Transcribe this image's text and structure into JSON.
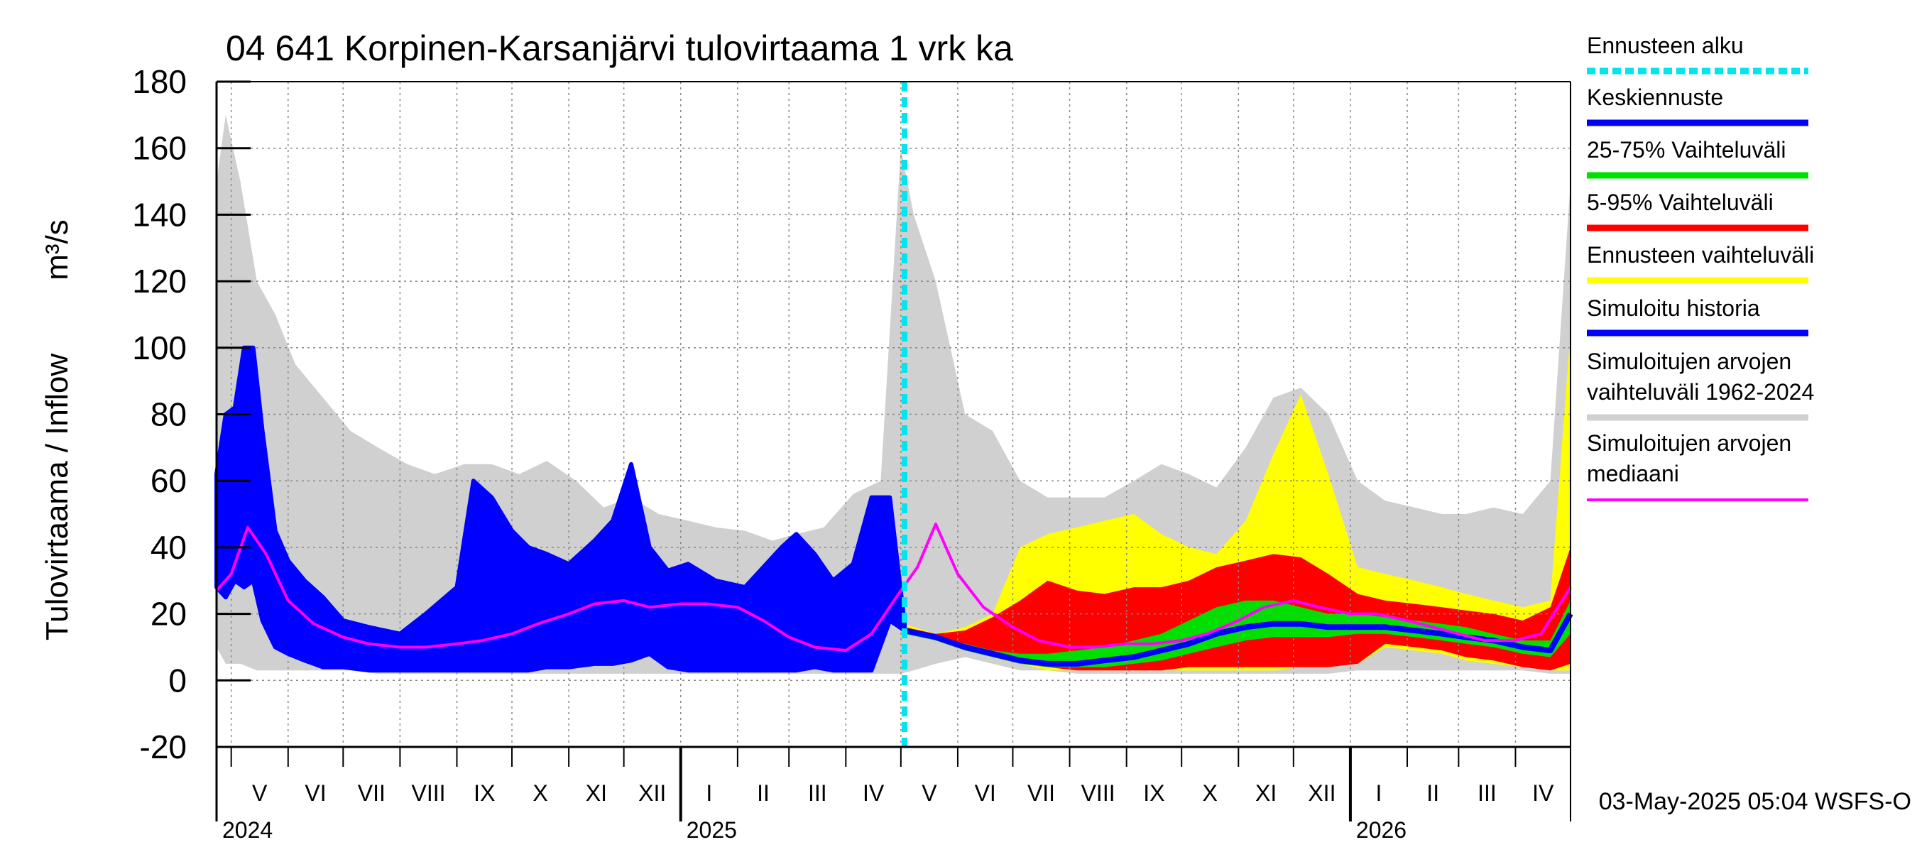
{
  "chart_data": {
    "type": "area",
    "title": "04 641 Korpinen-Karsanjärvi tulovirtaama 1 vrk ka",
    "ylabel": "Tulovirtaama / Inflow",
    "yunit": "m³/s",
    "ylim": [
      -20,
      180
    ],
    "yticks": [
      "-20",
      "0",
      "20",
      "40",
      "60",
      "80",
      "100",
      "120",
      "140",
      "160",
      "180"
    ],
    "xlim": [
      "2024-04-23",
      "2026-05-01"
    ],
    "months": [
      "V",
      "VI",
      "VII",
      "VIII",
      "IX",
      "X",
      "XI",
      "XII",
      "I",
      "II",
      "III",
      "IV",
      "V",
      "VI",
      "VII",
      "VIII",
      "IX",
      "X",
      "XI",
      "XII",
      "I",
      "II",
      "III",
      "IV"
    ],
    "years": [
      "2024",
      "2025",
      "2026"
    ],
    "grid": true,
    "legend_position": "right",
    "forecast_start": "2025-05-03",
    "footer": "03-May-2025 05:04 WSFS-O",
    "legend": [
      {
        "label": "Ennusteen alku",
        "color": "#00e5ee",
        "style": "dashed"
      },
      {
        "label": "Keskiennuste",
        "color": "#0000ff",
        "style": "solid"
      },
      {
        "label": "25-75% Vaihteluväli",
        "color": "#00e000",
        "style": "solid"
      },
      {
        "label": "5-95% Vaihteluväli",
        "color": "#ff0000",
        "style": "solid"
      },
      {
        "label": "Ennusteen vaihteluväli",
        "color": "#ffff00",
        "style": "solid"
      },
      {
        "label": "Simuloitu historia",
        "color": "#0000ff",
        "style": "solid"
      },
      {
        "label": "Simuloitujen arvojen\nvaihteluväli 1962-2024",
        "color": "#d0d0d0",
        "style": "solid"
      },
      {
        "label": "Simuloitujen arvojen\nmediaani",
        "color": "#ff00ff",
        "style": "solid"
      }
    ],
    "series": [
      {
        "name": "Simuloitujen arvojen vaihteluväli 1962-2024",
        "kind": "band",
        "color": "#d0d0d0",
        "x": [
          "2024-04-23",
          "2024-04-28",
          "2024-05-06",
          "2024-05-15",
          "2024-05-25",
          "2024-06-05",
          "2024-06-20",
          "2024-07-05",
          "2024-07-20",
          "2024-08-05",
          "2024-08-20",
          "2024-09-05",
          "2024-09-20",
          "2024-10-05",
          "2024-10-20",
          "2024-11-05",
          "2024-11-20",
          "2024-12-05",
          "2024-12-20",
          "2025-01-05",
          "2025-01-20",
          "2025-02-05",
          "2025-02-20",
          "2025-03-05",
          "2025-03-20",
          "2025-04-05",
          "2025-04-20",
          "2025-05-01",
          "2025-05-08",
          "2025-05-20",
          "2025-06-05",
          "2025-06-20",
          "2025-07-05",
          "2025-07-20",
          "2025-08-05",
          "2025-08-20",
          "2025-09-05",
          "2025-09-20",
          "2025-10-05",
          "2025-10-20",
          "2025-11-05",
          "2025-11-20",
          "2025-12-05",
          "2025-12-20",
          "2026-01-05",
          "2026-01-20",
          "2026-02-05",
          "2026-02-20",
          "2026-03-05",
          "2026-03-20",
          "2026-04-05",
          "2026-04-20",
          "2026-05-01"
        ],
        "upper": [
          150,
          170,
          150,
          120,
          110,
          95,
          85,
          75,
          70,
          65,
          62,
          65,
          65,
          62,
          66,
          60,
          52,
          55,
          50,
          48,
          46,
          45,
          42,
          44,
          46,
          56,
          60,
          160,
          140,
          120,
          80,
          75,
          60,
          55,
          55,
          55,
          60,
          65,
          62,
          58,
          70,
          85,
          88,
          80,
          60,
          54,
          52,
          50,
          50,
          52,
          50,
          60,
          150
        ],
        "lower": [
          10,
          5,
          5,
          3,
          3,
          3,
          3,
          3,
          2,
          2,
          2,
          2,
          2,
          2,
          2,
          2,
          2,
          2,
          2,
          2,
          2,
          2,
          2,
          2,
          2,
          2,
          2,
          2,
          3,
          5,
          7,
          5,
          3,
          3,
          2,
          2,
          2,
          2,
          2,
          2,
          2,
          2,
          2,
          2,
          3,
          3,
          3,
          3,
          3,
          3,
          3,
          2,
          2
        ]
      },
      {
        "name": "Ennusteen vaihteluväli",
        "kind": "band",
        "color": "#ffff00",
        "x": [
          "2025-05-03",
          "2025-05-20",
          "2025-06-05",
          "2025-06-20",
          "2025-07-05",
          "2025-07-20",
          "2025-08-05",
          "2025-08-20",
          "2025-09-05",
          "2025-09-20",
          "2025-10-05",
          "2025-10-20",
          "2025-11-05",
          "2025-11-20",
          "2025-12-05",
          "2025-12-20",
          "2026-01-05",
          "2026-01-20",
          "2026-02-05",
          "2026-02-20",
          "2026-03-05",
          "2026-03-20",
          "2026-04-05",
          "2026-04-20",
          "2026-05-01"
        ],
        "upper": [
          17,
          14,
          16,
          20,
          40,
          44,
          46,
          48,
          50,
          44,
          40,
          38,
          48,
          68,
          86,
          62,
          34,
          32,
          30,
          28,
          26,
          24,
          22,
          24,
          105
        ],
        "lower": [
          16,
          12,
          9,
          7,
          5,
          3,
          3,
          3,
          3,
          3,
          3,
          3,
          3,
          3,
          4,
          4,
          5,
          10,
          9,
          8,
          6,
          5,
          4,
          3,
          3
        ]
      },
      {
        "name": "5-95% Vaihteluväli",
        "kind": "band",
        "color": "#ff0000",
        "x": [
          "2025-05-03",
          "2025-05-20",
          "2025-06-05",
          "2025-06-20",
          "2025-07-05",
          "2025-07-20",
          "2025-08-05",
          "2025-08-20",
          "2025-09-05",
          "2025-09-20",
          "2025-10-05",
          "2025-10-20",
          "2025-11-05",
          "2025-11-20",
          "2025-12-05",
          "2025-12-20",
          "2026-01-05",
          "2026-01-20",
          "2026-02-05",
          "2026-02-20",
          "2026-03-05",
          "2026-03-20",
          "2026-04-05",
          "2026-04-20",
          "2026-05-01"
        ],
        "upper": [
          16,
          14,
          15,
          19,
          24,
          30,
          27,
          26,
          28,
          28,
          30,
          34,
          36,
          38,
          37,
          32,
          26,
          24,
          23,
          22,
          21,
          20,
          18,
          22,
          40
        ],
        "lower": [
          15,
          12,
          9,
          7,
          5,
          4,
          3,
          3,
          3,
          3,
          4,
          4,
          4,
          4,
          4,
          4,
          5,
          11,
          10,
          9,
          7,
          6,
          4,
          3,
          5
        ]
      },
      {
        "name": "25-75% Vaihteluväli",
        "kind": "band",
        "color": "#00e000",
        "x": [
          "2025-05-03",
          "2025-05-20",
          "2025-06-05",
          "2025-06-20",
          "2025-07-05",
          "2025-07-20",
          "2025-08-05",
          "2025-08-20",
          "2025-09-05",
          "2025-09-20",
          "2025-10-05",
          "2025-10-20",
          "2025-11-05",
          "2025-11-20",
          "2025-12-05",
          "2025-12-20",
          "2026-01-05",
          "2026-01-20",
          "2026-02-05",
          "2026-02-20",
          "2026-03-05",
          "2026-03-20",
          "2026-04-05",
          "2026-04-20",
          "2026-05-01"
        ],
        "upper": [
          15,
          13,
          11,
          9,
          8,
          8,
          9,
          10,
          12,
          14,
          18,
          22,
          24,
          24,
          22,
          20,
          20,
          19,
          18,
          17,
          16,
          14,
          12,
          12,
          24
        ],
        "lower": [
          14,
          12,
          9,
          7,
          5,
          4,
          4,
          4,
          5,
          6,
          8,
          10,
          12,
          13,
          13,
          13,
          14,
          14,
          13,
          12,
          11,
          10,
          8,
          7,
          14
        ]
      },
      {
        "name": "Keskiennuste",
        "kind": "line",
        "color": "#0000ff",
        "x": [
          "2025-05-03",
          "2025-05-20",
          "2025-06-05",
          "2025-06-20",
          "2025-07-05",
          "2025-07-20",
          "2025-08-05",
          "2025-08-20",
          "2025-09-05",
          "2025-09-20",
          "2025-10-05",
          "2025-10-20",
          "2025-11-05",
          "2025-11-20",
          "2025-12-05",
          "2025-12-20",
          "2026-01-05",
          "2026-01-20",
          "2026-02-05",
          "2026-02-20",
          "2026-03-05",
          "2026-03-20",
          "2026-04-05",
          "2026-04-20",
          "2026-05-01"
        ],
        "values": [
          15,
          13,
          10,
          8,
          6,
          5,
          5,
          6,
          7,
          9,
          11,
          14,
          16,
          17,
          17,
          16,
          16,
          16,
          15,
          14,
          13,
          12,
          10,
          9,
          20
        ]
      },
      {
        "name": "Simuloitu historia",
        "kind": "envelope",
        "color": "#0000ff",
        "x": [
          "2024-04-23",
          "2024-04-28",
          "2024-05-03",
          "2024-05-08",
          "2024-05-13",
          "2024-05-18",
          "2024-05-25",
          "2024-06-01",
          "2024-06-10",
          "2024-06-20",
          "2024-07-01",
          "2024-07-15",
          "2024-08-01",
          "2024-08-15",
          "2024-09-01",
          "2024-09-10",
          "2024-09-20",
          "2024-10-01",
          "2024-10-10",
          "2024-10-20",
          "2024-11-01",
          "2024-11-15",
          "2024-11-25",
          "2024-12-05",
          "2024-12-15",
          "2024-12-25",
          "2025-01-05",
          "2025-01-20",
          "2025-02-05",
          "2025-02-15",
          "2025-02-25",
          "2025-03-05",
          "2025-03-15",
          "2025-03-25",
          "2025-04-05",
          "2025-04-15",
          "2025-04-25",
          "2025-05-03"
        ],
        "upper": [
          62,
          80,
          82,
          100,
          100,
          75,
          45,
          36,
          30,
          25,
          18,
          16,
          14,
          20,
          28,
          60,
          55,
          45,
          40,
          38,
          35,
          42,
          48,
          65,
          40,
          33,
          35,
          30,
          28,
          34,
          40,
          44,
          38,
          30,
          35,
          55,
          55,
          17
        ],
        "lower": [
          28,
          25,
          30,
          28,
          30,
          18,
          10,
          8,
          6,
          4,
          4,
          3,
          3,
          3,
          3,
          3,
          3,
          3,
          3,
          4,
          4,
          5,
          5,
          6,
          8,
          4,
          3,
          3,
          3,
          3,
          3,
          3,
          4,
          3,
          3,
          3,
          18,
          15
        ]
      },
      {
        "name": "Simuloitujen arvojen mediaani",
        "kind": "line",
        "color": "#ff00ff",
        "x": [
          "2024-04-23",
          "2024-05-01",
          "2024-05-10",
          "2024-05-20",
          "2024-06-01",
          "2024-06-15",
          "2024-07-01",
          "2024-07-15",
          "2024-08-01",
          "2024-08-15",
          "2024-09-01",
          "2024-09-15",
          "2024-10-01",
          "2024-10-15",
          "2024-11-01",
          "2024-11-15",
          "2024-12-01",
          "2024-12-15",
          "2025-01-01",
          "2025-01-15",
          "2025-02-01",
          "2025-02-15",
          "2025-03-01",
          "2025-03-15",
          "2025-04-01",
          "2025-04-15",
          "2025-05-01",
          "2025-05-10",
          "2025-05-20",
          "2025-06-01",
          "2025-06-15",
          "2025-07-01",
          "2025-07-15",
          "2025-08-01",
          "2025-08-15",
          "2025-09-01",
          "2025-09-15",
          "2025-10-01",
          "2025-10-15",
          "2025-11-01",
          "2025-11-15",
          "2025-12-01",
          "2025-12-15",
          "2026-01-01",
          "2026-01-15",
          "2026-02-01",
          "2026-02-15",
          "2026-03-01",
          "2026-03-15",
          "2026-04-01",
          "2026-04-15",
          "2026-05-01"
        ],
        "values": [
          27,
          32,
          46,
          38,
          24,
          17,
          13,
          11,
          10,
          10,
          11,
          12,
          14,
          17,
          20,
          23,
          24,
          22,
          23,
          23,
          22,
          18,
          13,
          10,
          9,
          14,
          27,
          34,
          47,
          32,
          22,
          16,
          12,
          10,
          10,
          11,
          11,
          12,
          14,
          18,
          22,
          24,
          22,
          20,
          20,
          18,
          16,
          14,
          12,
          12,
          14,
          28
        ]
      }
    ]
  }
}
